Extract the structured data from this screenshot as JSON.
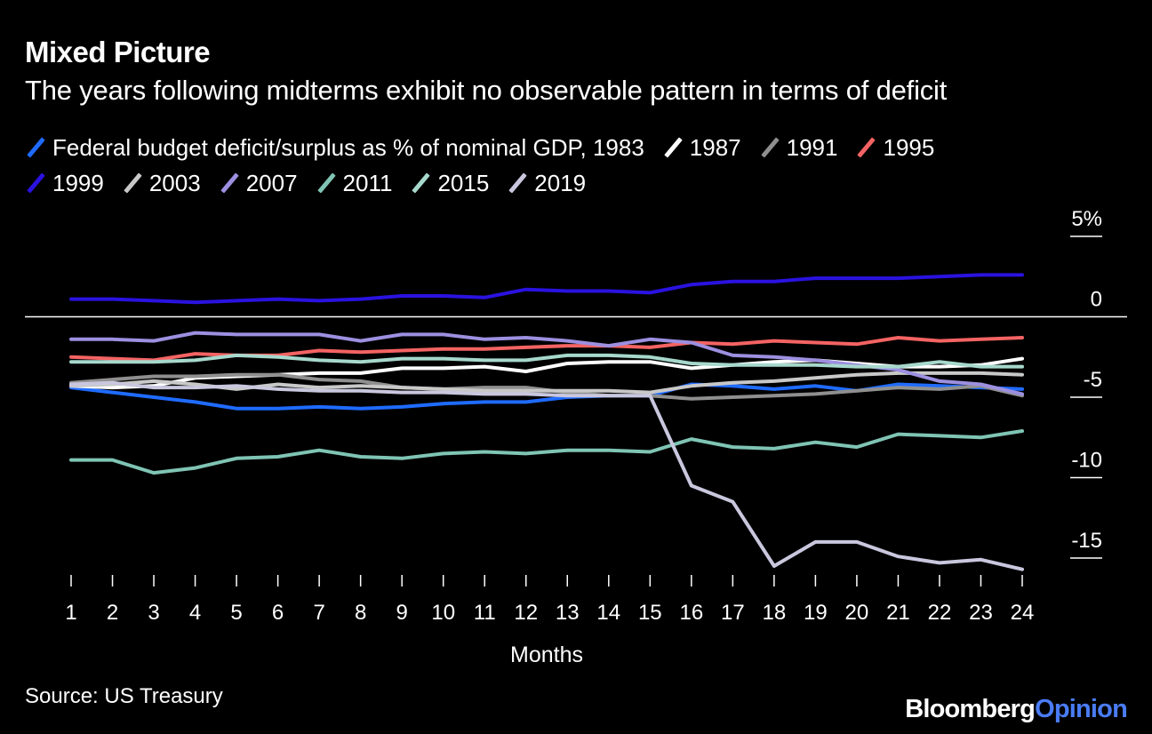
{
  "header": {
    "title": "Mixed Picture",
    "subtitle": "The years following midterms exhibit no observable pattern in terms of deficit"
  },
  "footer": {
    "source": "Source: US Treasury",
    "brand_part1": "Bloomberg",
    "brand_part2": "Opinion"
  },
  "chart_data": {
    "type": "line",
    "title": "Mixed Picture",
    "subtitle": "The years following midterms exhibit no observable pattern in terms of deficit",
    "xlabel": "Months",
    "ylabel": "",
    "x": [
      1,
      2,
      3,
      4,
      5,
      6,
      7,
      8,
      9,
      10,
      11,
      12,
      13,
      14,
      15,
      16,
      17,
      18,
      19,
      20,
      21,
      22,
      23,
      24
    ],
    "ylim": [
      -16,
      5
    ],
    "yticks": [
      5,
      0,
      -5,
      -10,
      -15
    ],
    "ytick_labels": [
      "5%",
      "0",
      "-5",
      "-10",
      "-15"
    ],
    "zero_line": true,
    "legend_position": "top-left",
    "series": [
      {
        "name": "Federal budget deficit/surplus as % of nominal GDP, 1983",
        "color": "#1f6bff",
        "values": [
          -4.4,
          -4.7,
          -5.0,
          -5.3,
          -5.7,
          -5.7,
          -5.6,
          -5.7,
          -5.6,
          -5.4,
          -5.3,
          -5.3,
          -5.0,
          -4.9,
          -4.9,
          -4.2,
          -4.3,
          -4.5,
          -4.3,
          -4.6,
          -4.2,
          -4.3,
          -4.4,
          -4.5
        ]
      },
      {
        "name": "1987",
        "color": "#ffffff",
        "values": [
          -4.3,
          -4.4,
          -4.3,
          -3.8,
          -3.7,
          -3.6,
          -3.5,
          -3.5,
          -3.2,
          -3.2,
          -3.1,
          -3.4,
          -2.9,
          -2.8,
          -2.8,
          -3.2,
          -3.0,
          -2.8,
          -2.7,
          -2.9,
          -3.1,
          -3.1,
          -3.0,
          -2.6
        ]
      },
      {
        "name": "1991",
        "color": "#8f8f8f",
        "values": [
          -4.1,
          -3.9,
          -3.7,
          -3.7,
          -3.6,
          -3.6,
          -3.9,
          -4.0,
          -4.4,
          -4.5,
          -4.4,
          -4.4,
          -4.7,
          -4.9,
          -4.9,
          -5.1,
          -5.0,
          -4.9,
          -4.8,
          -4.6,
          -4.4,
          -4.5,
          -4.3,
          -4.9
        ]
      },
      {
        "name": "1995",
        "color": "#f46363",
        "values": [
          -2.5,
          -2.6,
          -2.7,
          -2.3,
          -2.4,
          -2.4,
          -2.1,
          -2.2,
          -2.1,
          -2.0,
          -2.0,
          -1.9,
          -1.8,
          -1.8,
          -1.9,
          -1.6,
          -1.7,
          -1.5,
          -1.6,
          -1.7,
          -1.3,
          -1.5,
          -1.4,
          -1.3
        ]
      },
      {
        "name": "1999",
        "color": "#2a12e0",
        "values": [
          1.1,
          1.1,
          1.0,
          0.9,
          1.0,
          1.1,
          1.0,
          1.1,
          1.3,
          1.3,
          1.2,
          1.7,
          1.6,
          1.6,
          1.5,
          2.0,
          2.2,
          2.2,
          2.4,
          2.4,
          2.4,
          2.5,
          2.6,
          2.6
        ]
      },
      {
        "name": "2003",
        "color": "#c8c8c8",
        "values": [
          -4.3,
          -4.2,
          -4.0,
          -4.2,
          -4.5,
          -4.2,
          -4.4,
          -4.3,
          -4.4,
          -4.5,
          -4.6,
          -4.6,
          -4.6,
          -4.6,
          -4.7,
          -4.3,
          -4.1,
          -4.0,
          -3.8,
          -3.6,
          -3.5,
          -3.5,
          -3.5,
          -3.6
        ]
      },
      {
        "name": "2007",
        "color": "#9d8fe0",
        "values": [
          -1.4,
          -1.4,
          -1.5,
          -1.0,
          -1.1,
          -1.1,
          -1.1,
          -1.5,
          -1.1,
          -1.1,
          -1.4,
          -1.3,
          -1.5,
          -1.8,
          -1.4,
          -1.6,
          -2.4,
          -2.5,
          -2.7,
          -3.0,
          -3.3,
          -4.0,
          -4.2,
          -4.8
        ]
      },
      {
        "name": "2011",
        "color": "#7fc4b4",
        "values": [
          -8.9,
          -8.9,
          -9.7,
          -9.4,
          -8.8,
          -8.7,
          -8.3,
          -8.7,
          -8.8,
          -8.5,
          -8.4,
          -8.5,
          -8.3,
          -8.3,
          -8.4,
          -7.6,
          -8.1,
          -8.2,
          -7.8,
          -8.1,
          -7.3,
          -7.4,
          -7.5,
          -7.1
        ]
      },
      {
        "name": "2015",
        "color": "#a6d8cc",
        "values": [
          -2.8,
          -2.8,
          -2.8,
          -2.7,
          -2.4,
          -2.5,
          -2.7,
          -2.8,
          -2.6,
          -2.6,
          -2.7,
          -2.7,
          -2.4,
          -2.4,
          -2.5,
          -2.9,
          -3.0,
          -3.0,
          -3.0,
          -3.1,
          -3.1,
          -2.8,
          -3.1,
          -3.1
        ]
      },
      {
        "name": "2019",
        "color": "#c9c7de",
        "values": [
          -4.2,
          -4.1,
          -4.4,
          -4.4,
          -4.3,
          -4.5,
          -4.6,
          -4.6,
          -4.7,
          -4.7,
          -4.8,
          -4.8,
          -4.9,
          -4.9,
          -4.9,
          -10.5,
          -11.5,
          -15.5,
          -14.0,
          -14.0,
          -14.9,
          -15.3,
          -15.1,
          -15.7
        ]
      }
    ]
  }
}
